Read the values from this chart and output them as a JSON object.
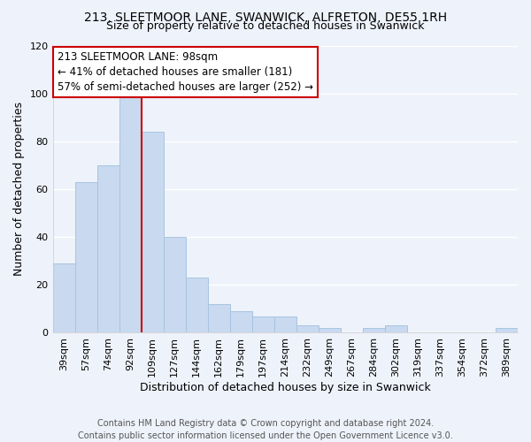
{
  "title_line1": "213, SLEETMOOR LANE, SWANWICK, ALFRETON, DE55 1RH",
  "title_line2": "Size of property relative to detached houses in Swanwick",
  "xlabel": "Distribution of detached houses by size in Swanwick",
  "ylabel": "Number of detached properties",
  "bar_labels": [
    "39sqm",
    "57sqm",
    "74sqm",
    "92sqm",
    "109sqm",
    "127sqm",
    "144sqm",
    "162sqm",
    "179sqm",
    "197sqm",
    "214sqm",
    "232sqm",
    "249sqm",
    "267sqm",
    "284sqm",
    "302sqm",
    "319sqm",
    "337sqm",
    "354sqm",
    "372sqm",
    "389sqm"
  ],
  "bar_values": [
    29,
    63,
    70,
    99,
    84,
    40,
    23,
    12,
    9,
    7,
    7,
    3,
    2,
    0,
    2,
    3,
    0,
    0,
    0,
    0,
    2
  ],
  "bar_color": "#c8d9f0",
  "bar_edgecolor": "#a8c4e0",
  "annotation_line1": "213 SLEETMOOR LANE: 98sqm",
  "annotation_line2": "← 41% of detached houses are smaller (181)",
  "annotation_line3": "57% of semi-detached houses are larger (252) →",
  "vline_color": "#cc0000",
  "vline_x_index": 3.5,
  "annotation_box_facecolor": "#ffffff",
  "annotation_box_edgecolor": "#cc0000",
  "footer_line1": "Contains HM Land Registry data © Crown copyright and database right 2024.",
  "footer_line2": "Contains public sector information licensed under the Open Government Licence v3.0.",
  "ylim": [
    0,
    120
  ],
  "background_color": "#eef2fa",
  "grid_color": "#ffffff",
  "title_fontsize": 10,
  "subtitle_fontsize": 9,
  "axis_label_fontsize": 9,
  "tick_fontsize": 8,
  "footer_fontsize": 7,
  "annotation_fontsize": 8.5
}
